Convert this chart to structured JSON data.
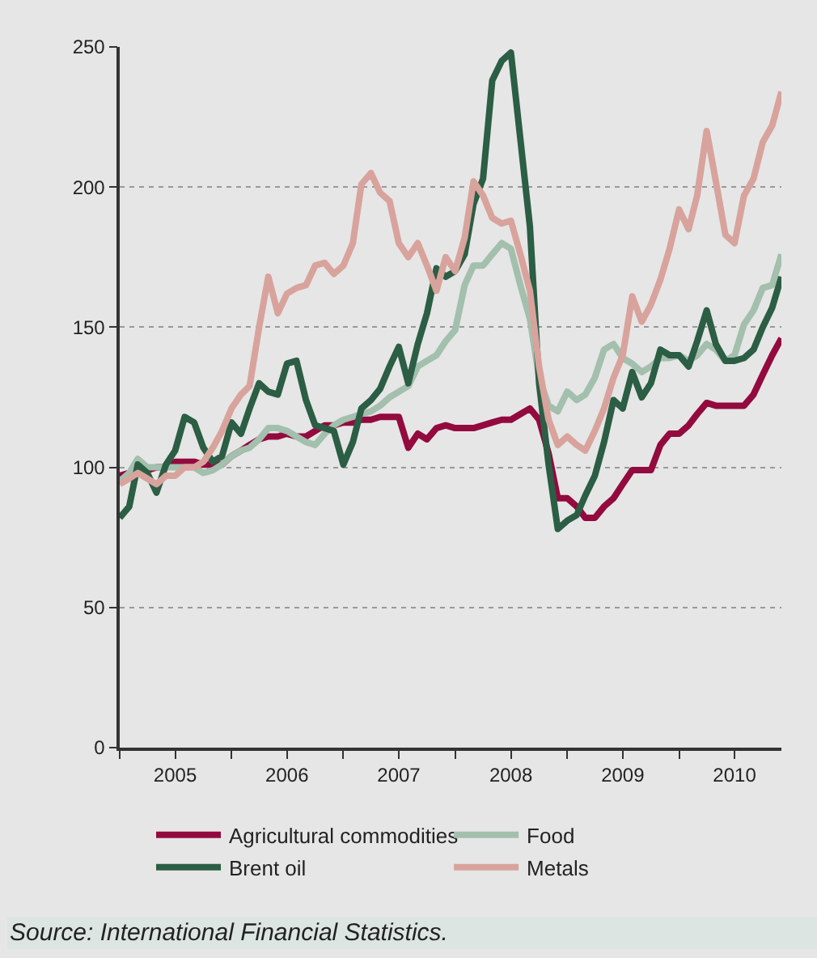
{
  "chart_data": {
    "type": "line",
    "x": [
      "2005-01",
      "2005-02",
      "2005-03",
      "2005-04",
      "2005-05",
      "2005-06",
      "2005-07",
      "2005-08",
      "2005-09",
      "2005-10",
      "2005-11",
      "2005-12",
      "2006-01",
      "2006-02",
      "2006-03",
      "2006-04",
      "2006-05",
      "2006-06",
      "2006-07",
      "2006-08",
      "2006-09",
      "2006-10",
      "2006-11",
      "2006-12",
      "2007-01",
      "2007-02",
      "2007-03",
      "2007-04",
      "2007-05",
      "2007-06",
      "2007-07",
      "2007-08",
      "2007-09",
      "2007-10",
      "2007-11",
      "2007-12",
      "2008-01",
      "2008-02",
      "2008-03",
      "2008-04",
      "2008-05",
      "2008-06",
      "2008-07",
      "2008-08",
      "2008-09",
      "2008-10",
      "2008-11",
      "2008-12",
      "2009-01",
      "2009-02",
      "2009-03",
      "2009-04",
      "2009-05",
      "2009-06",
      "2009-07",
      "2009-08",
      "2009-09",
      "2009-10",
      "2009-11",
      "2009-12",
      "2010-01",
      "2010-02",
      "2010-03",
      "2010-04",
      "2010-05",
      "2010-06",
      "2010-07",
      "2010-08",
      "2010-09",
      "2010-10",
      "2010-11",
      "2010-12"
    ],
    "series": [
      {
        "name": "Agricultural commodities",
        "color": "#930a3f",
        "values": [
          97,
          98,
          99,
          99,
          100,
          100,
          102,
          102,
          102,
          101,
          101,
          101,
          104,
          106,
          108,
          110,
          111,
          111,
          112,
          111,
          111,
          113,
          115,
          115,
          116,
          116,
          117,
          117,
          118,
          118,
          118,
          107,
          112,
          110,
          114,
          115,
          114,
          114,
          114,
          115,
          116,
          117,
          117,
          119,
          121,
          117,
          105,
          89,
          89,
          86,
          82,
          82,
          86,
          89,
          94,
          99,
          99,
          99,
          108,
          112,
          112,
          115,
          119,
          123,
          122,
          122,
          122,
          122,
          126,
          133,
          140,
          146
        ]
      },
      {
        "name": "Food",
        "color": "#a3bfad",
        "values": [
          95,
          98,
          103,
          100,
          100,
          100,
          100,
          100,
          100,
          98,
          99,
          101,
          104,
          106,
          107,
          110,
          114,
          114,
          113,
          111,
          109,
          108,
          112,
          115,
          117,
          118,
          119,
          120,
          122,
          125,
          127,
          129,
          136,
          138,
          140,
          145,
          149,
          165,
          172,
          172,
          176,
          180,
          178,
          165,
          153,
          132,
          122,
          120,
          127,
          124,
          126,
          132,
          142,
          144,
          139,
          137,
          134,
          136,
          139,
          139,
          140,
          138,
          140,
          144,
          142,
          138,
          140,
          151,
          156,
          164,
          165,
          176
        ]
      },
      {
        "name": "Brent oil",
        "color": "#2b5e44",
        "values": [
          82,
          86,
          101,
          98,
          91,
          101,
          106,
          118,
          116,
          107,
          102,
          104,
          116,
          112,
          121,
          130,
          127,
          126,
          137,
          138,
          124,
          115,
          114,
          113,
          101,
          109,
          121,
          124,
          128,
          136,
          143,
          130,
          144,
          155,
          171,
          168,
          170,
          176,
          194,
          203,
          238,
          245,
          248,
          217,
          186,
          130,
          101,
          78,
          81,
          83,
          90,
          97,
          109,
          124,
          121,
          134,
          125,
          130,
          142,
          140,
          140,
          136,
          145,
          156,
          144,
          138,
          138,
          139,
          142,
          150,
          157,
          168
        ]
      },
      {
        "name": "Metals",
        "color": "#d8a39c",
        "values": [
          94,
          96,
          98,
          96,
          94,
          97,
          97,
          100,
          100,
          102,
          107,
          113,
          121,
          126,
          129,
          150,
          168,
          155,
          162,
          164,
          165,
          172,
          173,
          169,
          172,
          180,
          201,
          205,
          198,
          195,
          180,
          175,
          180,
          172,
          163,
          175,
          170,
          182,
          202,
          197,
          189,
          187,
          188,
          176,
          163,
          136,
          117,
          108,
          111,
          108,
          106,
          113,
          121,
          132,
          140,
          161,
          152,
          158,
          167,
          178,
          192,
          185,
          197,
          220,
          202,
          183,
          180,
          197,
          203,
          216,
          222,
          234
        ]
      }
    ],
    "xlim": [
      "2005-01",
      "2010-12"
    ],
    "xticks": [
      {
        "value": "2005-01",
        "label": null
      },
      {
        "value": "2005-07",
        "label": "2005"
      },
      {
        "value": "2006-01",
        "label": null
      },
      {
        "value": "2006-07",
        "label": "2006"
      },
      {
        "value": "2007-01",
        "label": null
      },
      {
        "value": "2007-07",
        "label": "2007"
      },
      {
        "value": "2008-01",
        "label": null
      },
      {
        "value": "2008-07",
        "label": "2008"
      },
      {
        "value": "2009-01",
        "label": null
      },
      {
        "value": "2009-07",
        "label": "2009"
      },
      {
        "value": "2010-01",
        "label": null
      },
      {
        "value": "2010-07",
        "label": "2010"
      }
    ],
    "ylim": [
      0,
      250
    ],
    "yticks": [
      0,
      50,
      100,
      150,
      200,
      250
    ],
    "grid": "y",
    "legend": "bottom",
    "marker": "none",
    "line_style": "solid",
    "annotations": [
      "Source: International Financial Statistics."
    ]
  }
}
